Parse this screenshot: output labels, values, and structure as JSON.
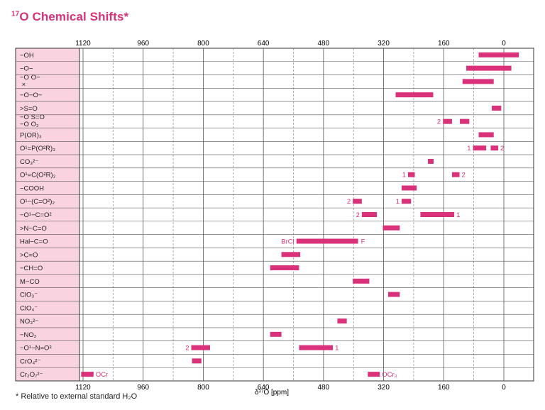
{
  "title": {
    "sup": "17",
    "main": "O Chemical Shifts*"
  },
  "footnote": "* Relative to external standard H₂O",
  "chart_data": {
    "type": "range-bar",
    "xlabel": "δ¹⁷O [ppm]",
    "xlim": [
      1130,
      -40
    ],
    "xticks": [
      1120,
      960,
      800,
      640,
      480,
      320,
      160,
      0
    ],
    "grid": true,
    "bar_color": "#d9317a",
    "rows": [
      {
        "label": "−OH",
        "bars": [
          {
            "from": 67,
            "to": -40
          }
        ]
      },
      {
        "label": "−O−",
        "bars": [
          {
            "from": 100,
            "to": -20
          }
        ]
      },
      {
        "label": "−O  O−\n  ×",
        "bars": [
          {
            "from": 110,
            "to": 27
          }
        ]
      },
      {
        "label": "−O−O−",
        "bars": [
          {
            "from": 288,
            "to": 188
          }
        ]
      },
      {
        "label": ">S=O",
        "bars": [
          {
            "from": 32,
            "to": 7
          }
        ]
      },
      {
        "label": "−O  S=O\n−O   O₂",
        "bars": [
          {
            "from": 162,
            "to": 138,
            "note": "2",
            "note_side": "left"
          },
          {
            "from": 117,
            "to": 92
          }
        ]
      },
      {
        "label": "P(OR)₃",
        "bars": [
          {
            "from": 67,
            "to": 27
          }
        ]
      },
      {
        "label": "O¹=P(O²R)₃",
        "bars": [
          {
            "from": 82,
            "to": 47,
            "note": "1",
            "note_side": "left"
          },
          {
            "from": 35,
            "to": 15,
            "note": "2",
            "note_side": "right"
          }
        ]
      },
      {
        "label": "CO₃²⁻",
        "bars": [
          {
            "from": 202,
            "to": 187
          }
        ]
      },
      {
        "label": "O¹=C(O²R)₂",
        "bars": [
          {
            "from": 255,
            "to": 237,
            "note": "1",
            "note_side": "left"
          },
          {
            "from": 138,
            "to": 118,
            "note": "2",
            "note_side": "right"
          }
        ]
      },
      {
        "label": "−COOH",
        "bars": [
          {
            "from": 272,
            "to": 232
          }
        ]
      },
      {
        "label": "O¹−(C=O²)₂",
        "bars": [
          {
            "from": 402,
            "to": 378,
            "note": "2",
            "note_side": "left"
          },
          {
            "from": 272,
            "to": 247,
            "note": "1",
            "note_side": "left"
          }
        ]
      },
      {
        "label": "−O¹−C=O²",
        "bars": [
          {
            "from": 378,
            "to": 338,
            "note": "2",
            "note_side": "left"
          },
          {
            "from": 222,
            "to": 132,
            "note": "1",
            "note_side": "right"
          }
        ]
      },
      {
        "label": ">N−C=O",
        "bars": [
          {
            "from": 322,
            "to": 277
          }
        ]
      },
      {
        "label": "Hal−C=O",
        "bars": [
          {
            "from": 552,
            "to": 388,
            "note": "BrCl",
            "note_side": "left"
          }
        ],
        "end_note": "F"
      },
      {
        "label": ">C=O",
        "bars": [
          {
            "from": 592,
            "to": 542
          }
        ]
      },
      {
        "label": "−CH=O",
        "bars": [
          {
            "from": 622,
            "to": 545
          }
        ]
      },
      {
        "label": "M−CO",
        "bars": [
          {
            "from": 402,
            "to": 358
          }
        ]
      },
      {
        "label": "ClO₃⁻",
        "bars": [
          {
            "from": 308,
            "to": 277
          }
        ]
      },
      {
        "label": "ClO₄⁻",
        "bars": []
      },
      {
        "label": "NO₃²⁻",
        "bars": [
          {
            "from": 443,
            "to": 418
          }
        ]
      },
      {
        "label": "−NO₂",
        "bars": [
          {
            "from": 622,
            "to": 592
          }
        ]
      },
      {
        "label": "−O¹−N=O²",
        "bars": [
          {
            "from": 832,
            "to": 782,
            "note": "2",
            "note_side": "left"
          },
          {
            "from": 545,
            "to": 455,
            "note": "1",
            "note_side": "right"
          }
        ]
      },
      {
        "label": "CrO₄²⁻",
        "bars": [
          {
            "from": 830,
            "to": 805
          }
        ]
      },
      {
        "label": "Cr₂O₇²⁻",
        "bars": [
          {
            "from": 1125,
            "to": 1092,
            "note": "OCr",
            "note_side": "right"
          },
          {
            "from": 362,
            "to": 330,
            "note": "OCr₃",
            "note_side": "right"
          }
        ]
      }
    ]
  }
}
